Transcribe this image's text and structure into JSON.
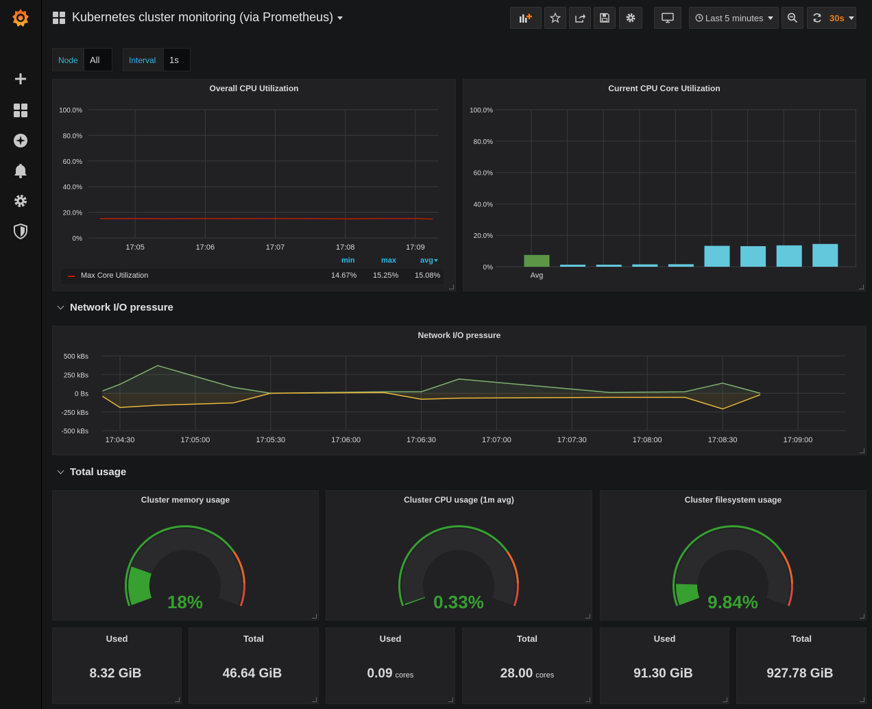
{
  "header": {
    "title": "Kubernetes cluster monitoring (via Prometheus)",
    "time_range": "Last 5 minutes",
    "refresh": "30s"
  },
  "variables": [
    {
      "label": "Node",
      "value": "All"
    },
    {
      "label": "Interval",
      "value": "1s"
    }
  ],
  "sidebar": {
    "icons": [
      "grafana-logo-icon",
      "plus-icon",
      "dashboards-icon",
      "explore-icon",
      "alerting-bell-icon",
      "gear-icon",
      "shield-icon"
    ]
  },
  "panels": {
    "overall_cpu": {
      "title": "Overall CPU Utilization",
      "legend": {
        "headers": {
          "min": "min",
          "max": "max",
          "avg": "avg"
        },
        "series": "Max Core Utilization",
        "min": "14.67%",
        "max": "15.25%",
        "avg": "15.08%"
      }
    },
    "core_cpu": {
      "title": "Current CPU Core Utilization"
    },
    "network": {
      "title": "Network I/O pressure"
    },
    "mem_gauge": {
      "title": "Cluster memory usage",
      "value": "18%"
    },
    "cpu_gauge": {
      "title": "Cluster CPU usage (1m avg)",
      "value": "0.33%"
    },
    "fs_gauge": {
      "title": "Cluster filesystem usage",
      "value": "9.84%"
    }
  },
  "rows": {
    "network": "Network I/O pressure",
    "total": "Total usage"
  },
  "stats": [
    {
      "title": "Used",
      "value": "8.32 GiB",
      "unit": ""
    },
    {
      "title": "Total",
      "value": "46.64 GiB",
      "unit": ""
    },
    {
      "title": "Used",
      "value": "0.09",
      "unit": "cores"
    },
    {
      "title": "Total",
      "value": "28.00",
      "unit": "cores"
    },
    {
      "title": "Used",
      "value": "91.30 GiB",
      "unit": ""
    },
    {
      "title": "Total",
      "value": "927.78 GiB",
      "unit": ""
    }
  ],
  "colors": {
    "accent": "#33b5e5",
    "refresh": "#eb7b18",
    "green": "#37a030",
    "orange": "#e5652a",
    "red": "#d44a3a",
    "bar_blue": "#64c8dc",
    "bar_green": "#5b9647",
    "line_red": "#bf1b00",
    "net_green": "#7eb26d",
    "net_yellow": "#eab839"
  },
  "chart_data": [
    {
      "type": "line",
      "title": "Overall CPU Utilization",
      "x": [
        "17:04:30",
        "17:05:00",
        "17:05:30",
        "17:06:00",
        "17:06:30",
        "17:07:00",
        "17:07:30",
        "17:08:00",
        "17:08:30",
        "17:09:00",
        "17:09:15"
      ],
      "series": [
        {
          "name": "Max Core Utilization",
          "values": [
            15.1,
            15.1,
            15.0,
            15.2,
            15.1,
            15.2,
            15.1,
            14.9,
            15.2,
            15.2,
            14.7
          ]
        }
      ],
      "xticks": [
        "17:05",
        "17:06",
        "17:07",
        "17:08",
        "17:09"
      ],
      "yticks": [
        "0%",
        "20.0%",
        "40.0%",
        "60.0%",
        "80.0%",
        "100.0%"
      ],
      "ylim": [
        0,
        100
      ]
    },
    {
      "type": "bar",
      "title": "Current CPU Core Utilization",
      "categories": [
        "Avg",
        "",
        "",
        "",
        "",
        "",
        "",
        "",
        ""
      ],
      "values": [
        7.5,
        1.3,
        1.3,
        1.5,
        1.6,
        13.3,
        13.1,
        13.6,
        14.5
      ],
      "yticks": [
        "0%",
        "20.0%",
        "40.0%",
        "60.0%",
        "80.0%",
        "100.0%"
      ],
      "ylim": [
        0,
        100
      ]
    },
    {
      "type": "area",
      "title": "Network I/O pressure",
      "x": [
        "17:04:23",
        "17:04:30",
        "17:04:45",
        "17:05:15",
        "17:05:30",
        "17:06:15",
        "17:06:30",
        "17:06:45",
        "17:07:45",
        "17:08:15",
        "17:08:30",
        "17:08:45"
      ],
      "series": [
        {
          "values": [
            30,
            120,
            370,
            80,
            0,
            20,
            20,
            190,
            10,
            20,
            135,
            0
          ]
        },
        {
          "values": [
            -40,
            -190,
            -160,
            -130,
            0,
            10,
            -80,
            -65,
            -55,
            -55,
            -210,
            -20
          ]
        }
      ],
      "xticks": [
        "17:04:30",
        "17:05:00",
        "17:05:30",
        "17:06:00",
        "17:06:30",
        "17:07:00",
        "17:07:30",
        "17:08:00",
        "17:08:30",
        "17:09:00"
      ],
      "yticks": [
        "500 kBs",
        "250 kBs",
        "0 Bs",
        "-250 kBs",
        "-500 kBs"
      ],
      "ylim": [
        -500,
        500
      ]
    }
  ]
}
